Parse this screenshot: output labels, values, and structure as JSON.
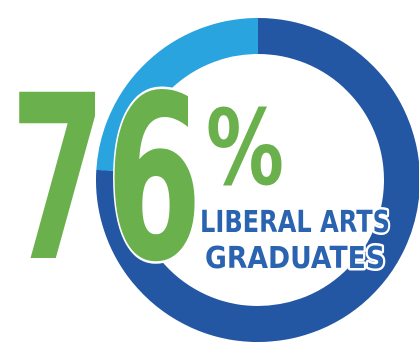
{
  "chart_data": {
    "type": "pie",
    "style": "donut",
    "value_percent": 76,
    "big_number": "76",
    "percent_sign": "%",
    "caption_line1": "LIBERAL ARTS",
    "caption_line2": "GRADUATES",
    "colors": {
      "filled": "#2356a3",
      "remainder": "#29a4df",
      "number": "#6ab04c",
      "caption": "#2a63b0",
      "caption_outline": "#ffffff"
    }
  }
}
